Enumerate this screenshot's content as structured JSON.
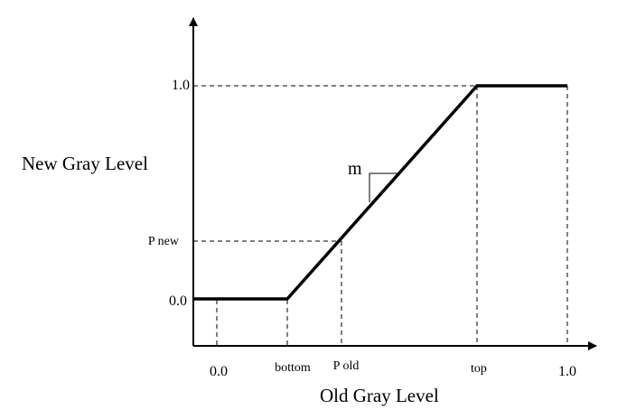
{
  "diagram": {
    "y_axis_title": "New Gray Level",
    "x_axis_title": "Old Gray Level",
    "y_ticks": {
      "one": "1.0",
      "p_new": "P new",
      "zero": "0.0"
    },
    "x_ticks": {
      "zero": "0.0",
      "bottom": "bottom",
      "p_old": "P old",
      "top": "top",
      "one": "1.0"
    },
    "slope_label": "m"
  }
}
